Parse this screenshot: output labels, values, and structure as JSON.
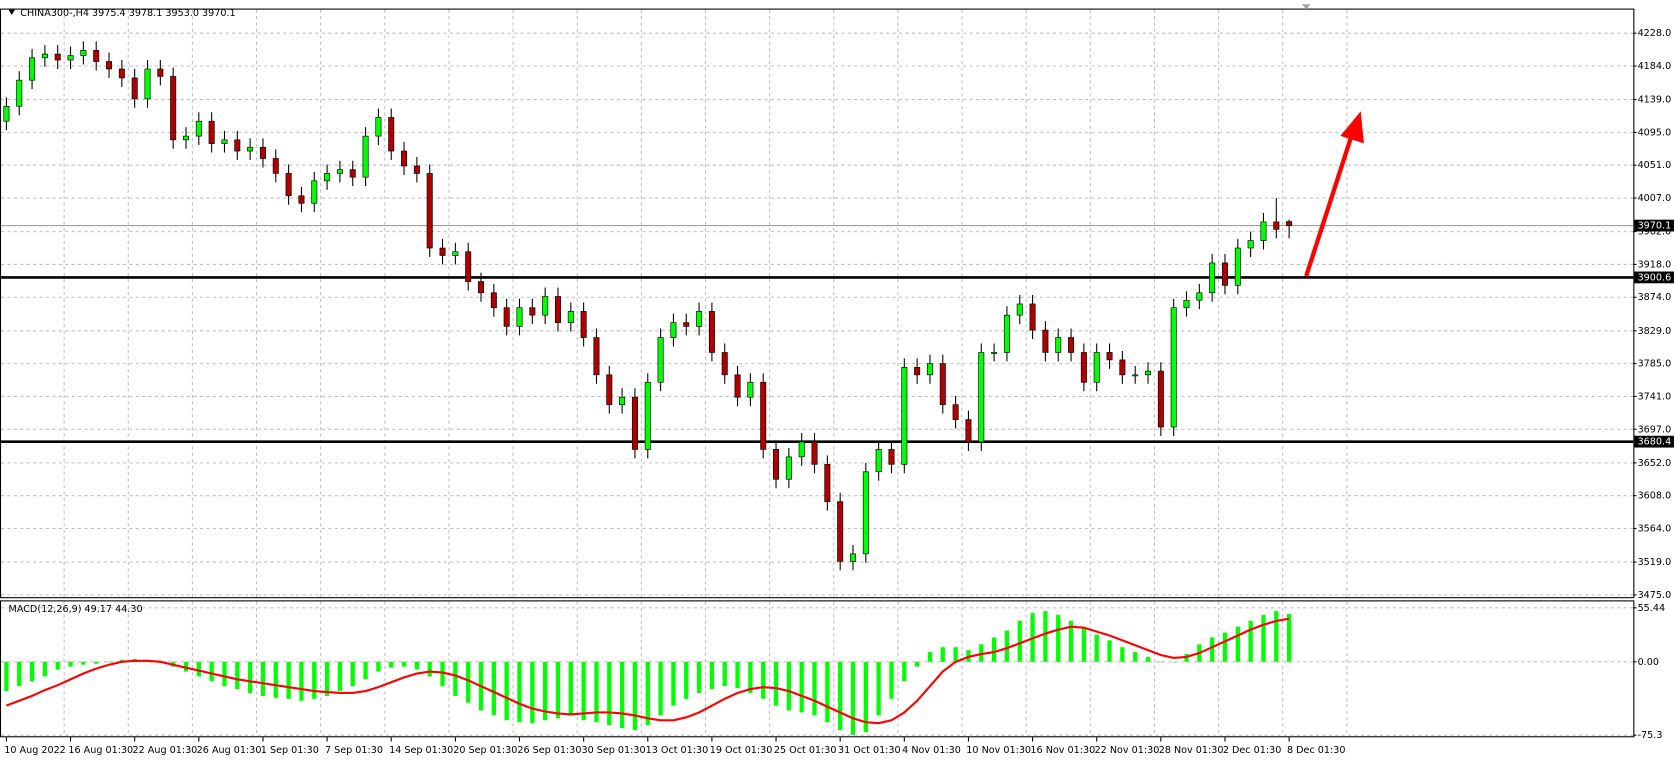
{
  "chart_data": [
    {
      "type": "candlestick",
      "title": "CHINA300-,H4  3975.4 3978.1 3953.0 3970.1",
      "categories": [
        "10 Aug 2022",
        null,
        null,
        null,
        null,
        "16 Aug 01:30",
        null,
        null,
        null,
        null,
        "22 Aug 01:30",
        null,
        null,
        null,
        null,
        "26 Aug 01:30",
        null,
        null,
        null,
        null,
        "1 Sep 01:30",
        null,
        null,
        null,
        null,
        "7 Sep 01:30",
        null,
        null,
        null,
        null,
        "14 Sep 01:30",
        null,
        null,
        null,
        null,
        "20 Sep 01:30",
        null,
        null,
        null,
        null,
        "26 Sep 01:30",
        null,
        null,
        null,
        null,
        "30 Sep 01:30",
        null,
        null,
        null,
        null,
        "13 Oct 01:30",
        null,
        null,
        null,
        null,
        "19 Oct 01:30",
        null,
        null,
        null,
        null,
        "25 Oct 01:30",
        null,
        null,
        null,
        null,
        "31 Oct 01:30",
        null,
        null,
        null,
        null,
        "4 Nov 01:30",
        null,
        null,
        null,
        null,
        "10 Nov 01:30",
        null,
        null,
        null,
        null,
        "16 Nov 01:30",
        null,
        null,
        null,
        null,
        "22 Nov 01:30",
        null,
        null,
        null,
        null,
        "28 Nov 01:30",
        null,
        null,
        null,
        null,
        "2 Dec 01:30",
        null,
        null,
        null,
        null,
        "8 Dec 01:30"
      ],
      "open": [
        4110,
        4130,
        4165,
        4195,
        4200,
        4192,
        4198,
        4205,
        4190,
        4180,
        4168,
        4140,
        4180,
        4170,
        4085,
        4090,
        4110,
        4080,
        4085,
        4070,
        4075,
        4060,
        4040,
        4010,
        4000,
        4030,
        4040,
        4045,
        4035,
        4090,
        4115,
        4070,
        4050,
        4040,
        3940,
        3930,
        3935,
        3895,
        3880,
        3860,
        3835,
        3860,
        3850,
        3875,
        3840,
        3855,
        3820,
        3770,
        3730,
        3740,
        3670,
        3760,
        3820,
        3840,
        3835,
        3855,
        3800,
        3770,
        3740,
        3760,
        3670,
        3630,
        3660,
        3680,
        3650,
        3600,
        3520,
        3530,
        3640,
        3670,
        3650,
        3780,
        3770,
        3785,
        3730,
        3710,
        3680,
        3800,
        3800,
        3850,
        3865,
        3830,
        3800,
        3820,
        3800,
        3760,
        3800,
        3790,
        3770,
        3770,
        3775,
        3700,
        3860,
        3870,
        3880,
        3920,
        3890,
        3940,
        3950,
        3975,
        3975.4
      ],
      "high": [
        4142,
        4177,
        4207,
        4212,
        4212,
        4210,
        4217,
        4217,
        4202,
        4192,
        4180,
        4192,
        4192,
        4182,
        4102,
        4122,
        4122,
        4097,
        4097,
        4087,
        4087,
        4072,
        4052,
        4022,
        4042,
        4052,
        4057,
        4057,
        4102,
        4127,
        4127,
        4082,
        4062,
        4052,
        3952,
        3947,
        3947,
        3907,
        3892,
        3872,
        3872,
        3872,
        3887,
        3887,
        3867,
        3867,
        3832,
        3782,
        3752,
        3752,
        3772,
        3832,
        3852,
        3852,
        3867,
        3867,
        3812,
        3782,
        3772,
        3772,
        3682,
        3672,
        3692,
        3692,
        3662,
        3612,
        3542,
        3652,
        3682,
        3682,
        3792,
        3792,
        3797,
        3797,
        3742,
        3722,
        3812,
        3812,
        3862,
        3877,
        3877,
        3842,
        3832,
        3832,
        3812,
        3812,
        3812,
        3802,
        3782,
        3787,
        3787,
        3872,
        3882,
        3892,
        3932,
        3932,
        3952,
        3962,
        3987,
        4007,
        3978.1
      ],
      "low": [
        4098,
        4118,
        4153,
        4183,
        4180,
        4180,
        4186,
        4178,
        4168,
        4156,
        4128,
        4128,
        4158,
        4073,
        4073,
        4078,
        4068,
        4068,
        4058,
        4058,
        4048,
        4028,
        3998,
        3988,
        3988,
        4018,
        4028,
        4023,
        4023,
        4078,
        4058,
        4038,
        4028,
        3928,
        3918,
        3918,
        3883,
        3868,
        3848,
        3823,
        3823,
        3838,
        3838,
        3828,
        3828,
        3808,
        3758,
        3718,
        3718,
        3658,
        3658,
        3748,
        3808,
        3823,
        3823,
        3788,
        3758,
        3728,
        3728,
        3658,
        3618,
        3618,
        3648,
        3638,
        3588,
        3508,
        3508,
        3518,
        3628,
        3638,
        3638,
        3758,
        3758,
        3718,
        3698,
        3668,
        3668,
        3788,
        3788,
        3838,
        3818,
        3788,
        3788,
        3788,
        3748,
        3748,
        3778,
        3758,
        3758,
        3758,
        3688,
        3688,
        3848,
        3858,
        3868,
        3878,
        3878,
        3928,
        3938,
        3953,
        3953.0
      ],
      "close": [
        4130,
        4165,
        4195,
        4200,
        4192,
        4198,
        4205,
        4190,
        4180,
        4168,
        4140,
        4180,
        4170,
        4085,
        4090,
        4110,
        4080,
        4085,
        4070,
        4075,
        4060,
        4040,
        4010,
        4000,
        4030,
        4040,
        4045,
        4035,
        4090,
        4115,
        4070,
        4050,
        4040,
        3940,
        3930,
        3935,
        3895,
        3880,
        3860,
        3835,
        3860,
        3850,
        3875,
        3840,
        3855,
        3820,
        3770,
        3730,
        3740,
        3670,
        3760,
        3820,
        3840,
        3835,
        3855,
        3800,
        3770,
        3740,
        3760,
        3670,
        3630,
        3660,
        3680,
        3650,
        3600,
        3520,
        3530,
        3640,
        3670,
        3650,
        3780,
        3770,
        3785,
        3730,
        3710,
        3680,
        3800,
        3800,
        3850,
        3865,
        3830,
        3800,
        3820,
        3800,
        3760,
        3800,
        3790,
        3770,
        3770,
        3775,
        3700,
        3860,
        3870,
        3880,
        3920,
        3890,
        3940,
        3950,
        3975,
        3965,
        3970.1
      ],
      "up_color": "#00ff00",
      "down_color": "#b00000",
      "ylim": [
        3472,
        4261
      ],
      "yticks": [
        {
          "value": 4228,
          "label": "4228.0"
        },
        {
          "value": 4184,
          "label": "4184.0"
        },
        {
          "value": 4139,
          "label": "4139.0"
        },
        {
          "value": 4095,
          "label": "4095.0"
        },
        {
          "value": 4051,
          "label": "4051.0"
        },
        {
          "value": 4007,
          "label": "4007.0"
        },
        {
          "value": 3962,
          "label": "3962.0"
        },
        {
          "value": 3918,
          "label": "3918.0"
        },
        {
          "value": 3874,
          "label": "3874.0"
        },
        {
          "value": 3829,
          "label": "3829.0"
        },
        {
          "value": 3785,
          "label": "3785.0"
        },
        {
          "value": 3741,
          "label": "3741.0"
        },
        {
          "value": 3697,
          "label": "3697.0"
        },
        {
          "value": 3652,
          "label": "3652.0"
        },
        {
          "value": 3608,
          "label": "3608.0"
        },
        {
          "value": 3564,
          "label": "3564.0"
        },
        {
          "value": 3519,
          "label": "3519.0"
        },
        {
          "value": 3475,
          "label": "3475.0"
        }
      ],
      "grid": true,
      "hlines": [
        {
          "value": 3970.1,
          "color": "#a0a0a0"
        },
        {
          "value": 3900.6,
          "color": "#000000"
        },
        {
          "value": 3680.4,
          "color": "#000000"
        }
      ]
    },
    {
      "type": "macd",
      "title": "MACD(12,26,9) 49.17 44.30",
      "histogram": [
        -30,
        -25,
        -20,
        -15,
        -8,
        -5,
        -3,
        -2,
        0,
        2,
        3,
        2,
        0,
        -5,
        -10,
        -15,
        -20,
        -25,
        -28,
        -32,
        -35,
        -37,
        -38,
        -40,
        -38,
        -35,
        -30,
        -25,
        -18,
        -10,
        -6,
        -5,
        -8,
        -15,
        -25,
        -35,
        -42,
        -50,
        -55,
        -60,
        -62,
        -63,
        -60,
        -58,
        -55,
        -60,
        -62,
        -65,
        -68,
        -70,
        -65,
        -55,
        -45,
        -38,
        -32,
        -28,
        -25,
        -27,
        -32,
        -38,
        -45,
        -50,
        -52,
        -55,
        -62,
        -70,
        -75,
        -72,
        -55,
        -38,
        -20,
        -5,
        10,
        15,
        15,
        12,
        18,
        25,
        32,
        42,
        50,
        52,
        48,
        42,
        35,
        28,
        22,
        15,
        10,
        5,
        0,
        0,
        8,
        18,
        25,
        30,
        36,
        42,
        48,
        52,
        49.17
      ],
      "signal": [
        -45,
        -40,
        -35,
        -29,
        -24,
        -18,
        -12,
        -7,
        -3,
        0,
        1,
        1,
        0,
        -3,
        -6,
        -9,
        -12,
        -15,
        -18,
        -20,
        -22,
        -24,
        -26,
        -28,
        -30,
        -31,
        -32,
        -32,
        -30,
        -26,
        -21,
        -16,
        -12,
        -10,
        -11,
        -14,
        -19,
        -25,
        -31,
        -37,
        -43,
        -48,
        -51,
        -53,
        -54,
        -53,
        -52,
        -52,
        -53,
        -55,
        -58,
        -60,
        -60,
        -57,
        -52,
        -45,
        -38,
        -32,
        -28,
        -26,
        -27,
        -30,
        -35,
        -40,
        -46,
        -52,
        -58,
        -62,
        -63,
        -60,
        -52,
        -40,
        -25,
        -10,
        0,
        5,
        8,
        10,
        14,
        19,
        24,
        29,
        33,
        36,
        35,
        31,
        27,
        22,
        17,
        12,
        7,
        4,
        5,
        9,
        15,
        21,
        27,
        33,
        38,
        42,
        44.3
      ],
      "histogram_color": "#00ff00",
      "signal_color": "#ff0000",
      "y2lim": [
        -76.4,
        63.1
      ],
      "y2ticks": [
        55.44,
        {
          "value": 0,
          "label": "0.00"
        },
        -75.3
      ]
    }
  ]
}
